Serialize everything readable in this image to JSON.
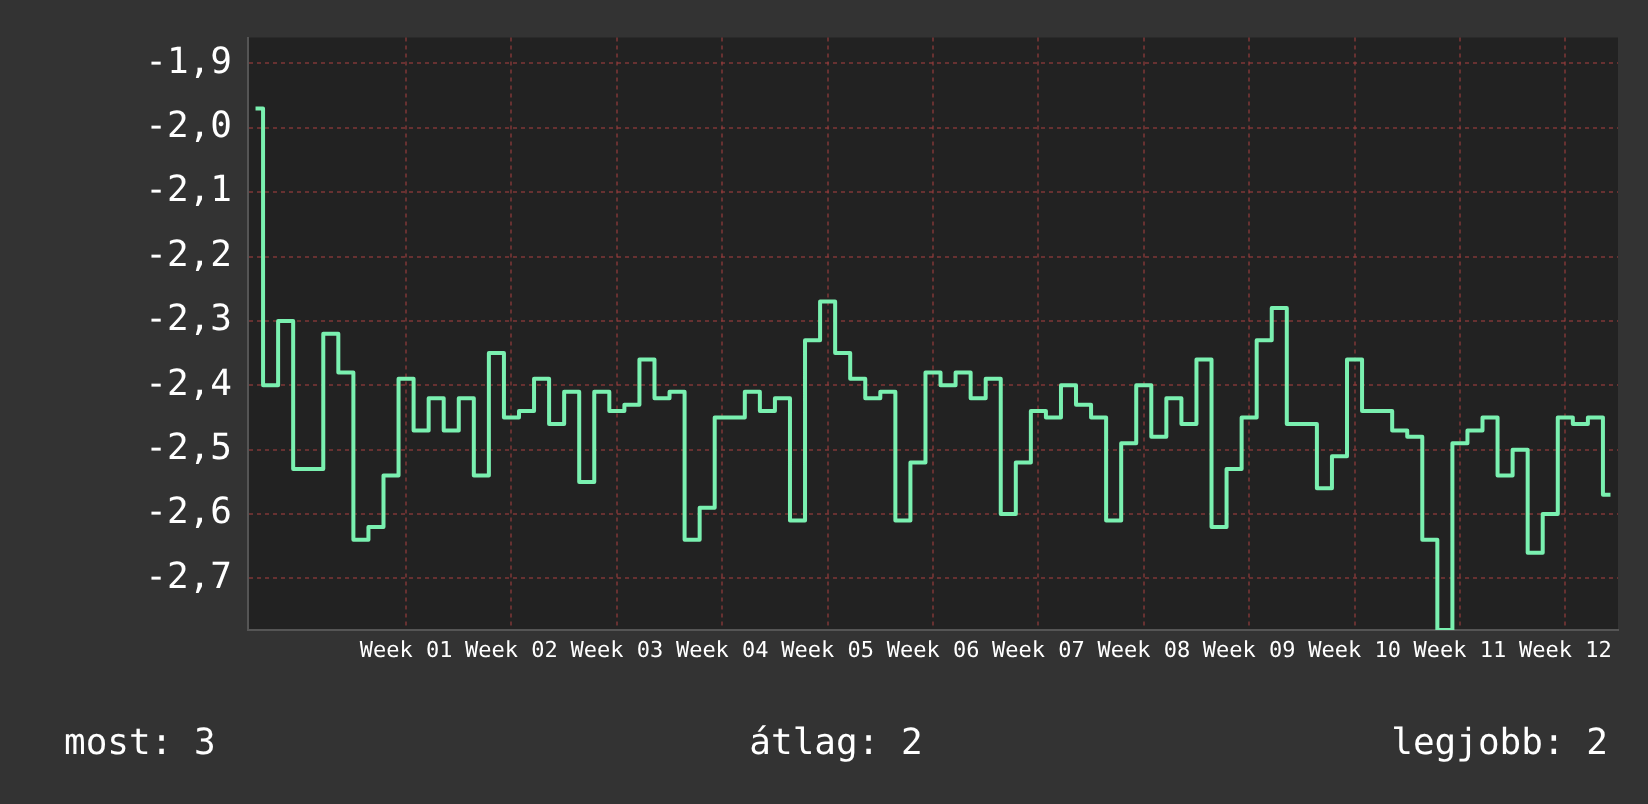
{
  "chart_data": {
    "type": "step",
    "categories": [
      null,
      null,
      null,
      null,
      null,
      null,
      null,
      null,
      null,
      null,
      "Week 01",
      null,
      null,
      null,
      null,
      null,
      null,
      "Week 02",
      null,
      null,
      null,
      null,
      null,
      null,
      "Week 03",
      null,
      null,
      null,
      null,
      null,
      null,
      "Week 04",
      null,
      null,
      null,
      null,
      null,
      null,
      "Week 05",
      null,
      null,
      null,
      null,
      null,
      null,
      "Week 06",
      null,
      null,
      null,
      null,
      null,
      null,
      "Week 07",
      null,
      null,
      null,
      null,
      null,
      null,
      "Week 08",
      null,
      null,
      null,
      null,
      null,
      null,
      "Week 09",
      null,
      null,
      null,
      null,
      null,
      null,
      "Week 10",
      null,
      null,
      null,
      null,
      null,
      null,
      "Week 11",
      null,
      null,
      null,
      null,
      null,
      null,
      "Week 12",
      null,
      null,
      null
    ],
    "series": [
      {
        "color": "#7af0b0",
        "values": [
          -1.97,
          -2.4,
          -2.3,
          -2.53,
          -2.53,
          -2.32,
          -2.38,
          -2.64,
          -2.62,
          -2.54,
          -2.39,
          -2.47,
          -2.42,
          -2.47,
          -2.42,
          -2.54,
          -2.35,
          -2.45,
          -2.44,
          -2.39,
          -2.46,
          -2.41,
          -2.55,
          -2.41,
          -2.44,
          -2.43,
          -2.36,
          -2.42,
          -2.41,
          -2.64,
          -2.59,
          -2.45,
          -2.45,
          -2.41,
          -2.44,
          -2.42,
          -2.61,
          -2.33,
          -2.27,
          -2.35,
          -2.39,
          -2.42,
          -2.41,
          -2.61,
          -2.52,
          -2.38,
          -2.4,
          -2.38,
          -2.42,
          -2.39,
          -2.6,
          -2.52,
          -2.44,
          -2.45,
          -2.4,
          -2.43,
          -2.45,
          -2.61,
          -2.49,
          -2.4,
          -2.48,
          -2.42,
          -2.46,
          -2.36,
          -2.62,
          -2.53,
          -2.45,
          -2.33,
          -2.28,
          -2.46,
          -2.46,
          -2.56,
          -2.51,
          -2.36,
          -2.44,
          -2.44,
          -2.47,
          -2.48,
          -2.64,
          -2.78,
          -2.49,
          -2.47,
          -2.45,
          -2.54,
          -2.5,
          -2.66,
          -2.6,
          -2.45,
          -2.46,
          -2.45,
          -2.57
        ]
      }
    ],
    "ylim": [
      -2.78,
      -1.86
    ],
    "yticks": [
      {
        "value": -1.9,
        "label": "-1,9"
      },
      {
        "value": -2.0,
        "label": "-2,0"
      },
      {
        "value": -2.1,
        "label": "-2,1"
      },
      {
        "value": -2.2,
        "label": "-2,2"
      },
      {
        "value": -2.3,
        "label": "-2,3"
      },
      {
        "value": -2.4,
        "label": "-2,4"
      },
      {
        "value": -2.5,
        "label": "-2,5"
      },
      {
        "value": -2.6,
        "label": "-2,6"
      },
      {
        "value": -2.7,
        "label": "-2,7"
      }
    ],
    "grid": true,
    "marker": "none",
    "annotations": [
      "most: 3",
      "átlag: 2",
      "legjobb: 2"
    ]
  }
}
